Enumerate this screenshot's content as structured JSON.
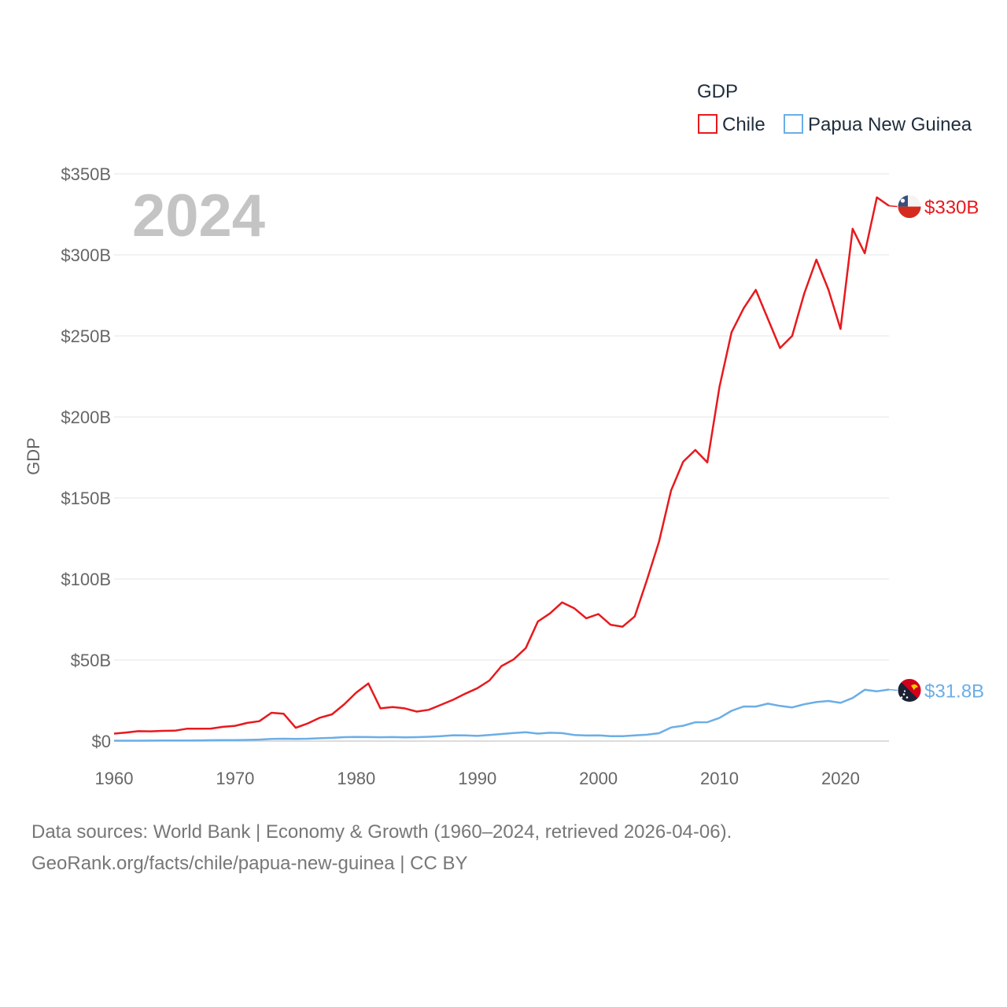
{
  "chart_data": {
    "type": "line",
    "title": "GDP",
    "year_label": "2024",
    "xlabel": "",
    "ylabel": "GDP",
    "xlim": [
      1960,
      2024
    ],
    "ylim": [
      0,
      350
    ],
    "x_ticks": [
      "1960",
      "1970",
      "1980",
      "1990",
      "2000",
      "2010",
      "2020"
    ],
    "y_ticks": [
      "$0",
      "$50B",
      "$100B",
      "$150B",
      "$200B",
      "$250B",
      "$300B",
      "$350B"
    ],
    "y_tick_values": [
      0,
      50,
      100,
      150,
      200,
      250,
      300,
      350
    ],
    "x": [
      1960,
      1961,
      1962,
      1963,
      1964,
      1965,
      1966,
      1967,
      1968,
      1969,
      1970,
      1971,
      1972,
      1973,
      1974,
      1975,
      1976,
      1977,
      1978,
      1979,
      1980,
      1981,
      1982,
      1983,
      1984,
      1985,
      1986,
      1987,
      1988,
      1989,
      1990,
      1991,
      1992,
      1993,
      1994,
      1995,
      1996,
      1997,
      1998,
      1999,
      2000,
      2001,
      2002,
      2003,
      2004,
      2005,
      2006,
      2007,
      2008,
      2009,
      2010,
      2011,
      2012,
      2013,
      2014,
      2015,
      2016,
      2017,
      2018,
      2019,
      2020,
      2021,
      2022,
      2023,
      2024
    ],
    "series": [
      {
        "name": "Chile",
        "color": "#e8191d",
        "end_label": "$330B",
        "values": [
          4.6,
          5.3,
          6.1,
          6.0,
          6.3,
          6.4,
          7.6,
          7.6,
          7.7,
          8.8,
          9.4,
          11.2,
          12.3,
          17.5,
          16.9,
          8.2,
          10.9,
          14.4,
          16.5,
          22.6,
          29.9,
          35.6,
          20.2,
          21.0,
          20.2,
          18.2,
          19.3,
          22.4,
          25.5,
          29.2,
          32.6,
          37.4,
          46.3,
          50.4,
          57.4,
          73.8,
          78.8,
          85.6,
          82.0,
          75.8,
          78.4,
          71.8,
          70.6,
          76.9,
          99.2,
          122.9,
          154.6,
          172.4,
          179.6,
          172.0,
          218.5,
          252.3,
          267.1,
          278.4,
          260.5,
          242.5,
          250.0,
          276.2,
          297.1,
          278.6,
          254.3,
          316.1,
          301.0,
          335.5,
          330.3
        ]
      },
      {
        "name": "Papua New Guinea",
        "color": "#6baee6",
        "end_label": "$31.8B",
        "values": [
          0.23,
          0.24,
          0.26,
          0.29,
          0.32,
          0.36,
          0.41,
          0.46,
          0.52,
          0.62,
          0.65,
          0.71,
          0.9,
          1.29,
          1.47,
          1.37,
          1.48,
          1.74,
          2.0,
          2.42,
          2.55,
          2.49,
          2.38,
          2.5,
          2.35,
          2.43,
          2.65,
          3.05,
          3.6,
          3.53,
          3.22,
          3.79,
          4.38,
          4.99,
          5.46,
          4.63,
          5.15,
          4.9,
          3.79,
          3.45,
          3.52,
          3.08,
          2.99,
          3.54,
          3.93,
          4.87,
          8.4,
          9.45,
          11.61,
          11.64,
          14.25,
          18.7,
          21.37,
          21.32,
          23.12,
          21.72,
          20.76,
          22.74,
          24.1,
          24.75,
          23.59,
          26.59,
          31.63,
          30.75,
          31.8
        ]
      }
    ],
    "legend": {
      "title": "GDP",
      "placement": "top-right",
      "items": [
        "Chile",
        "Papua New Guinea"
      ]
    }
  },
  "flags": {
    "chile": "chile-flag-icon",
    "png": "papua-new-guinea-flag-icon"
  },
  "footer": {
    "line1": "Data sources: World Bank | Economy & Growth (1960–2024, retrieved 2026-04-06).",
    "line2": "GeoRank.org/facts/chile/papua-new-guinea | CC BY"
  }
}
